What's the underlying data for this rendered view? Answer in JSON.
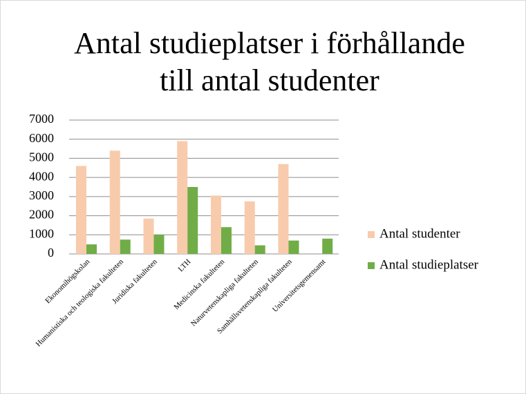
{
  "chart_data": {
    "type": "bar",
    "title": "Antal studieplatser i förhållande till antal studenter",
    "categories": [
      "Ekonomihögskolan",
      "Humanistiska och teologiska fakulteten",
      "Juridiska fakulteten",
      "LTH",
      "Medicinska fakulteten",
      "Naturvetenskapliga fakulteten",
      "Samhällsvetenskapliga fakulteten",
      "Universitetsgemensamt"
    ],
    "series": [
      {
        "name": "Antal studenter",
        "color": "#f8cbad",
        "values": [
          4600,
          5400,
          1850,
          5900,
          3050,
          2750,
          4700,
          0
        ]
      },
      {
        "name": "Antal studieplatser",
        "color": "#70ad47",
        "values": [
          500,
          750,
          1000,
          3500,
          1400,
          450,
          700,
          800
        ]
      }
    ],
    "ylim": [
      0,
      7000
    ],
    "yticks": [
      0,
      1000,
      2000,
      3000,
      4000,
      5000,
      6000,
      7000
    ],
    "grid": true,
    "legend": "right"
  }
}
